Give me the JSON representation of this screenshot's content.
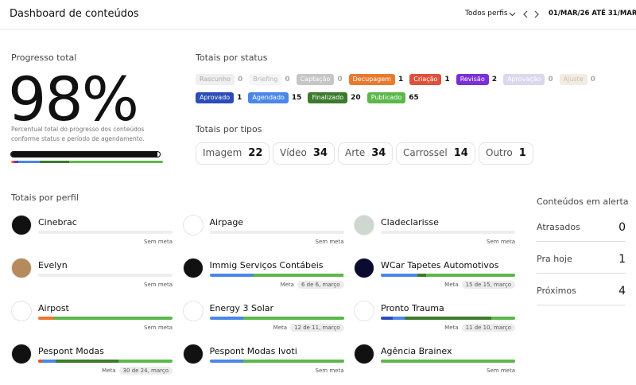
{
  "header": {
    "title": "Dashboard de conteúdos",
    "filter": "Todos perfis",
    "date_range": "01/MAR/26 ATÉ 31/MAR/26"
  },
  "progress": {
    "title": "Progresso total",
    "value": 98,
    "value_label": "98%",
    "description": "Percentual total do progresso dos conteúdos conforme status e período de agendamento."
  },
  "status": {
    "title": "Totais por status",
    "rows": [
      [
        {
          "label": "Rascunho",
          "count": 0,
          "color": "#efefef",
          "text_color": "#a8a8a8"
        },
        {
          "label": "Briefing",
          "count": 0,
          "color": "#f6f6f6",
          "text_color": "#b5b5b5"
        },
        {
          "label": "Captação",
          "count": 0,
          "color": "#c6c6c6",
          "text_color": "#ffffff"
        },
        {
          "label": "Decupagem",
          "count": 1,
          "color": "#e8792f",
          "text_color": "#ffffff"
        },
        {
          "label": "Criação",
          "count": 1,
          "color": "#e0503a",
          "text_color": "#ffffff"
        },
        {
          "label": "Revisão",
          "count": 2,
          "color": "#7a2fd8",
          "text_color": "#ffffff"
        },
        {
          "label": "Aprovação",
          "count": 0,
          "color": "#dcd6ee",
          "text_color": "#ffffff"
        },
        {
          "label": "Ajuste",
          "count": 0,
          "color": "#f3ece3",
          "text_color": "#c9bfb2"
        }
      ],
      [
        {
          "label": "Aprovado",
          "count": 1,
          "color": "#2c4db8",
          "text_color": "#ffffff"
        },
        {
          "label": "Agendado",
          "count": 15,
          "color": "#4a87e8",
          "text_color": "#ffffff"
        },
        {
          "label": "Finalizado",
          "count": 20,
          "color": "#3c7a2d",
          "text_color": "#ffffff"
        },
        {
          "label": "Publicado",
          "count": 65,
          "color": "#5cb84a",
          "text_color": "#ffffff"
        }
      ]
    ]
  },
  "types": {
    "title": "Totais por tipos",
    "items": [
      {
        "label": "Imagem",
        "count": 22
      },
      {
        "label": "Vídeo",
        "count": 34
      },
      {
        "label": "Arte",
        "count": 34
      },
      {
        "label": "Carrossel",
        "count": 14
      },
      {
        "label": "Outro",
        "count": 1
      }
    ]
  },
  "profiles": {
    "title": "Totais por perfil",
    "items": [
      {
        "name": "Cinebrac",
        "goal_label": "Sem meta",
        "segments": []
      },
      {
        "name": "Airpage",
        "goal_label": "Sem meta",
        "segments": []
      },
      {
        "name": "Cladeclarisse",
        "goal_label": "Sem meta",
        "segments": []
      },
      {
        "name": "Evelyn",
        "goal_label": "Sem meta",
        "segments": []
      },
      {
        "name": "Immig Serviços Contábeis",
        "goal_label": "Meta",
        "goal": "6 de 6, março",
        "segments": [
          {
            "color": "#4a87e8",
            "value": 33
          },
          {
            "color": "#5cb84a",
            "value": 67
          }
        ]
      },
      {
        "name": "WCar Tapetes Automotivos",
        "goal_label": "Meta",
        "goal": "15 de 15, março",
        "segments": [
          {
            "color": "#4a87e8",
            "value": 27
          },
          {
            "color": "#3c7a2d",
            "value": 7
          },
          {
            "color": "#5cb84a",
            "value": 66
          }
        ]
      },
      {
        "name": "Airpost",
        "goal_label": "Sem meta",
        "segments": [
          {
            "color": "#e8792f",
            "value": 12
          },
          {
            "color": "#5cb84a",
            "value": 88
          }
        ]
      },
      {
        "name": "Energy 3 Solar",
        "goal_label": "Meta",
        "goal": "12 de 11, março",
        "segments": [
          {
            "color": "#4a87e8",
            "value": 25
          },
          {
            "color": "#5cb84a",
            "value": 75
          }
        ]
      },
      {
        "name": "Pronto Trauma",
        "goal_label": "Meta",
        "goal": "11 de 10, março",
        "segments": [
          {
            "color": "#2c4db8",
            "value": 9
          },
          {
            "color": "#4a87e8",
            "value": 9
          },
          {
            "color": "#3c7a2d",
            "value": 64
          },
          {
            "color": "#5cb84a",
            "value": 18
          }
        ]
      },
      {
        "name": "Pespont Modas",
        "goal_label": "Meta",
        "goal": "30 de 24, março",
        "segments": [
          {
            "color": "#e0503a",
            "value": 3
          },
          {
            "color": "#4a87e8",
            "value": 10
          },
          {
            "color": "#3c7a2d",
            "value": 47
          },
          {
            "color": "#5cb84a",
            "value": 40
          }
        ]
      },
      {
        "name": "Pespont Modas Ivoti",
        "goal_label": "Sem meta",
        "segments": [
          {
            "color": "#4a87e8",
            "value": 25
          },
          {
            "color": "#5cb84a",
            "value": 75
          }
        ]
      },
      {
        "name": "Agência Brainex",
        "goal_label": "Sem meta",
        "segments": [
          {
            "color": "#5cb84a",
            "value": 100
          }
        ]
      }
    ]
  },
  "alerts": {
    "title": "Conteúdos em alerta",
    "items": [
      {
        "label": "Atrasados",
        "count": 0
      },
      {
        "label": "Pra hoje",
        "count": 1
      },
      {
        "label": "Próximos",
        "count": 4
      }
    ]
  }
}
